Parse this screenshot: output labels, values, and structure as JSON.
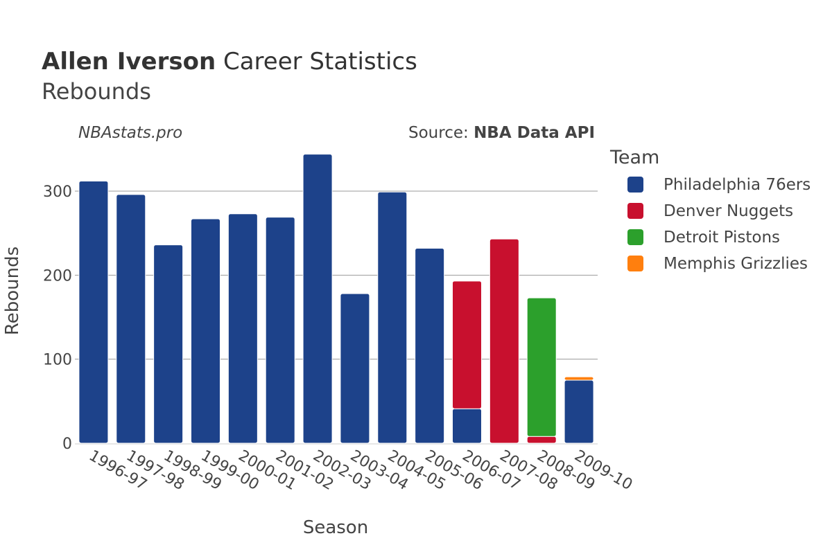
{
  "title": {
    "bold": "Allen Iverson",
    "rest": " Career Statistics",
    "subtitle": "Rebounds"
  },
  "site_label": "NBAstats.pro",
  "source": {
    "prefix": "Source: ",
    "name": "NBA Data API"
  },
  "legend": {
    "title": "Team"
  },
  "chart_data": {
    "type": "bar",
    "stacked": true,
    "xlabel": "Season",
    "ylabel": "Rebounds",
    "ylim": [
      0,
      350
    ],
    "yticks": [
      0,
      100,
      200,
      300
    ],
    "grid": true,
    "legend_position": "right",
    "categories": [
      "1996-97",
      "1997-98",
      "1998-99",
      "1999-00",
      "2000-01",
      "2001-02",
      "2002-03",
      "2003-04",
      "2004-05",
      "2005-06",
      "2006-07",
      "2007-08",
      "2008-09",
      "2009-10"
    ],
    "series": [
      {
        "name": "Philadelphia 76ers",
        "color": "#1d428a",
        "values": [
          312,
          296,
          236,
          267,
          273,
          269,
          344,
          178,
          299,
          232,
          41,
          0,
          0,
          75
        ]
      },
      {
        "name": "Denver Nuggets",
        "color": "#c8102e",
        "values": [
          0,
          0,
          0,
          0,
          0,
          0,
          0,
          0,
          0,
          0,
          152,
          243,
          8,
          0
        ]
      },
      {
        "name": "Detroit Pistons",
        "color": "#2ca02c",
        "values": [
          0,
          0,
          0,
          0,
          0,
          0,
          0,
          0,
          0,
          0,
          0,
          0,
          165,
          0
        ]
      },
      {
        "name": "Memphis Grizzlies",
        "color": "#ff7f0e",
        "values": [
          0,
          0,
          0,
          0,
          0,
          0,
          0,
          0,
          0,
          0,
          0,
          0,
          0,
          4
        ]
      }
    ]
  }
}
